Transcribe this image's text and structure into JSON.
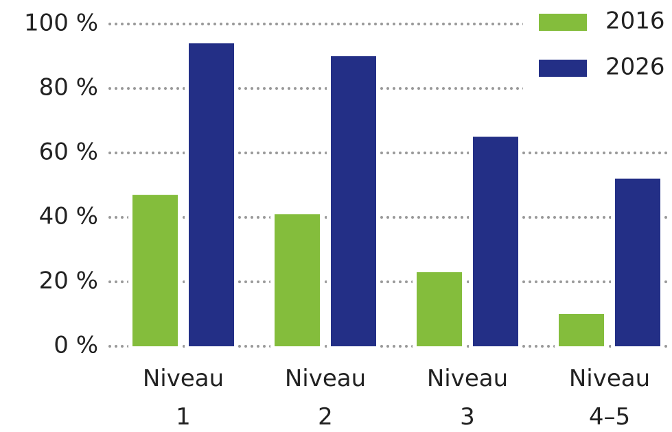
{
  "chart_data": {
    "type": "bar",
    "categories": [
      "Niveau 1",
      "Niveau 2",
      "Niveau 3",
      "Niveau 4–5"
    ],
    "series": [
      {
        "name": "2016",
        "color": "#84bd3c",
        "values": [
          47,
          41,
          23,
          10
        ]
      },
      {
        "name": "2026",
        "color": "#232f86",
        "values": [
          94,
          90,
          65,
          52
        ]
      }
    ],
    "ylim": [
      0,
      100
    ],
    "yticks": [
      {
        "value": 0,
        "label": "0 %"
      },
      {
        "value": 20,
        "label": "20 %"
      },
      {
        "value": 40,
        "label": "40 %"
      },
      {
        "value": 60,
        "label": "60 %"
      },
      {
        "value": 80,
        "label": "80 %"
      },
      {
        "value": 100,
        "label": "100 %"
      }
    ],
    "grid": true,
    "legend": "top-right"
  }
}
